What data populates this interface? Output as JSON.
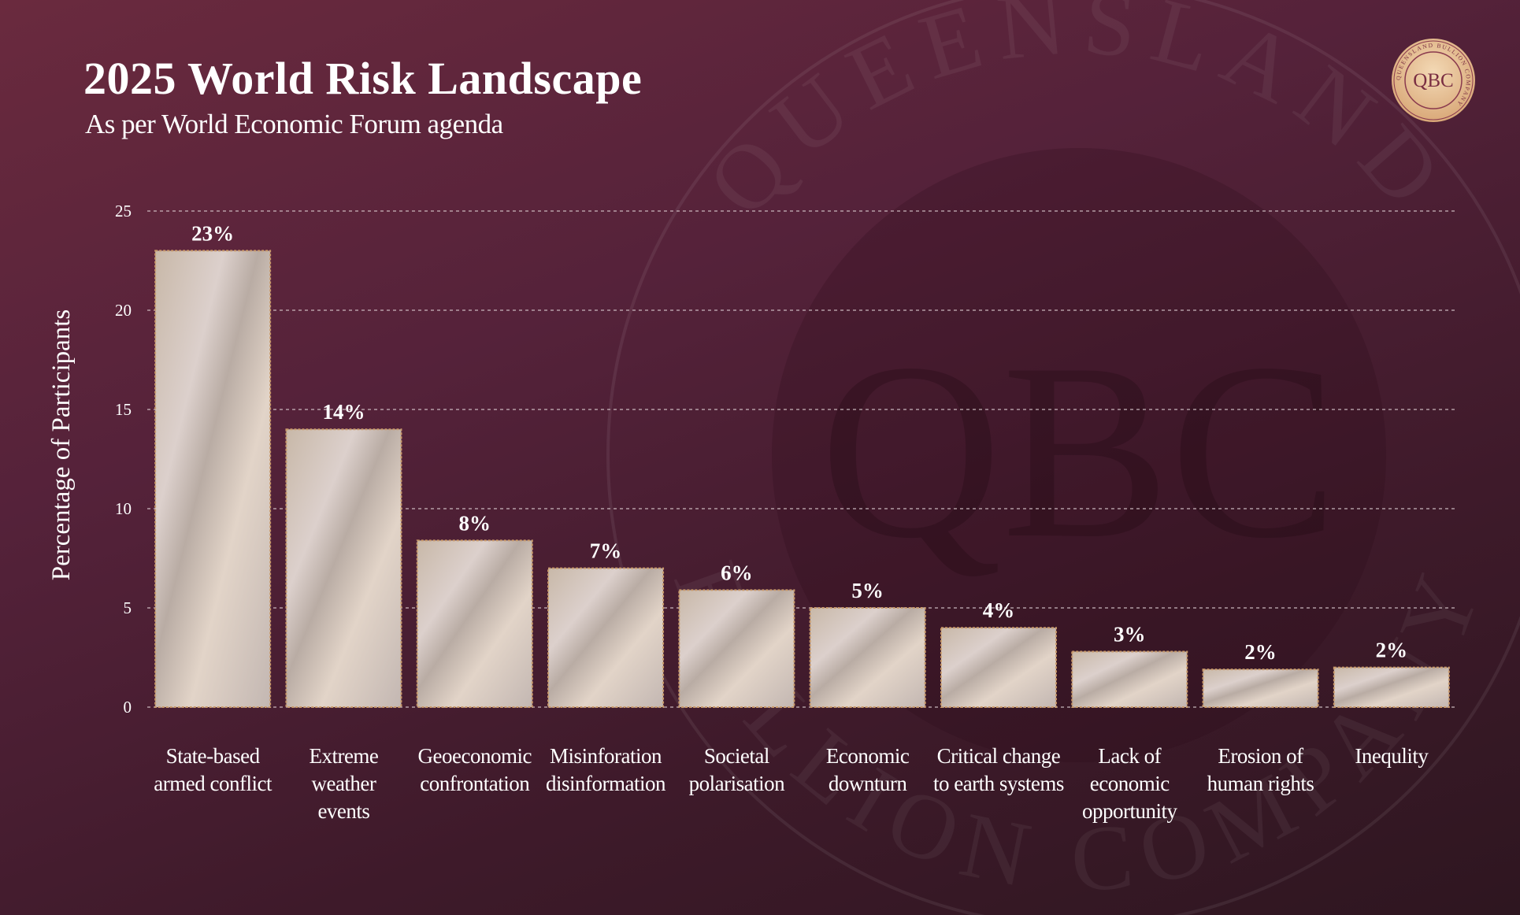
{
  "header": {
    "title": "2025 World Risk Landscape",
    "subtitle": "As per World Economic Forum agenda"
  },
  "logo": {
    "monogram": "QBC",
    "ring_text": "QUEENSLAND BULLION COMPANY"
  },
  "watermark": {
    "monogram": "QBC",
    "ring_top": "QUEENSLAND",
    "ring_bottom": "BULLION COMPANY"
  },
  "colors": {
    "background": "#5a2438",
    "bar_fill": "#d6c6bd",
    "bar_border": "#c99a6b",
    "gridline": "#d8c8cc"
  },
  "chart_data": {
    "type": "bar",
    "ylabel": "Percentage of Participants",
    "xlabel": "",
    "ylim": [
      0,
      25
    ],
    "yticks": [
      0,
      5,
      10,
      15,
      20,
      25
    ],
    "grid": true,
    "categories": [
      [
        "State-based",
        "armed conflict"
      ],
      [
        "Extreme",
        "weather",
        "events"
      ],
      [
        "Geoeconomic",
        "confrontation"
      ],
      [
        "Misinforation",
        "disinformation"
      ],
      [
        "Societal",
        "polarisation"
      ],
      [
        "Economic",
        "downturn"
      ],
      [
        "Critical change",
        "to earth systems"
      ],
      [
        "Lack of",
        "economic",
        "opportunity"
      ],
      [
        "Erosion of",
        "human rights"
      ],
      [
        "Inequlity"
      ]
    ],
    "values": [
      23,
      14,
      8.4,
      7,
      5.9,
      5,
      4,
      2.8,
      1.9,
      2
    ],
    "data_labels": [
      "23%",
      "14%",
      "8%",
      "7%",
      "6%",
      "5%",
      "4%",
      "3%",
      "2%",
      "2%"
    ]
  }
}
